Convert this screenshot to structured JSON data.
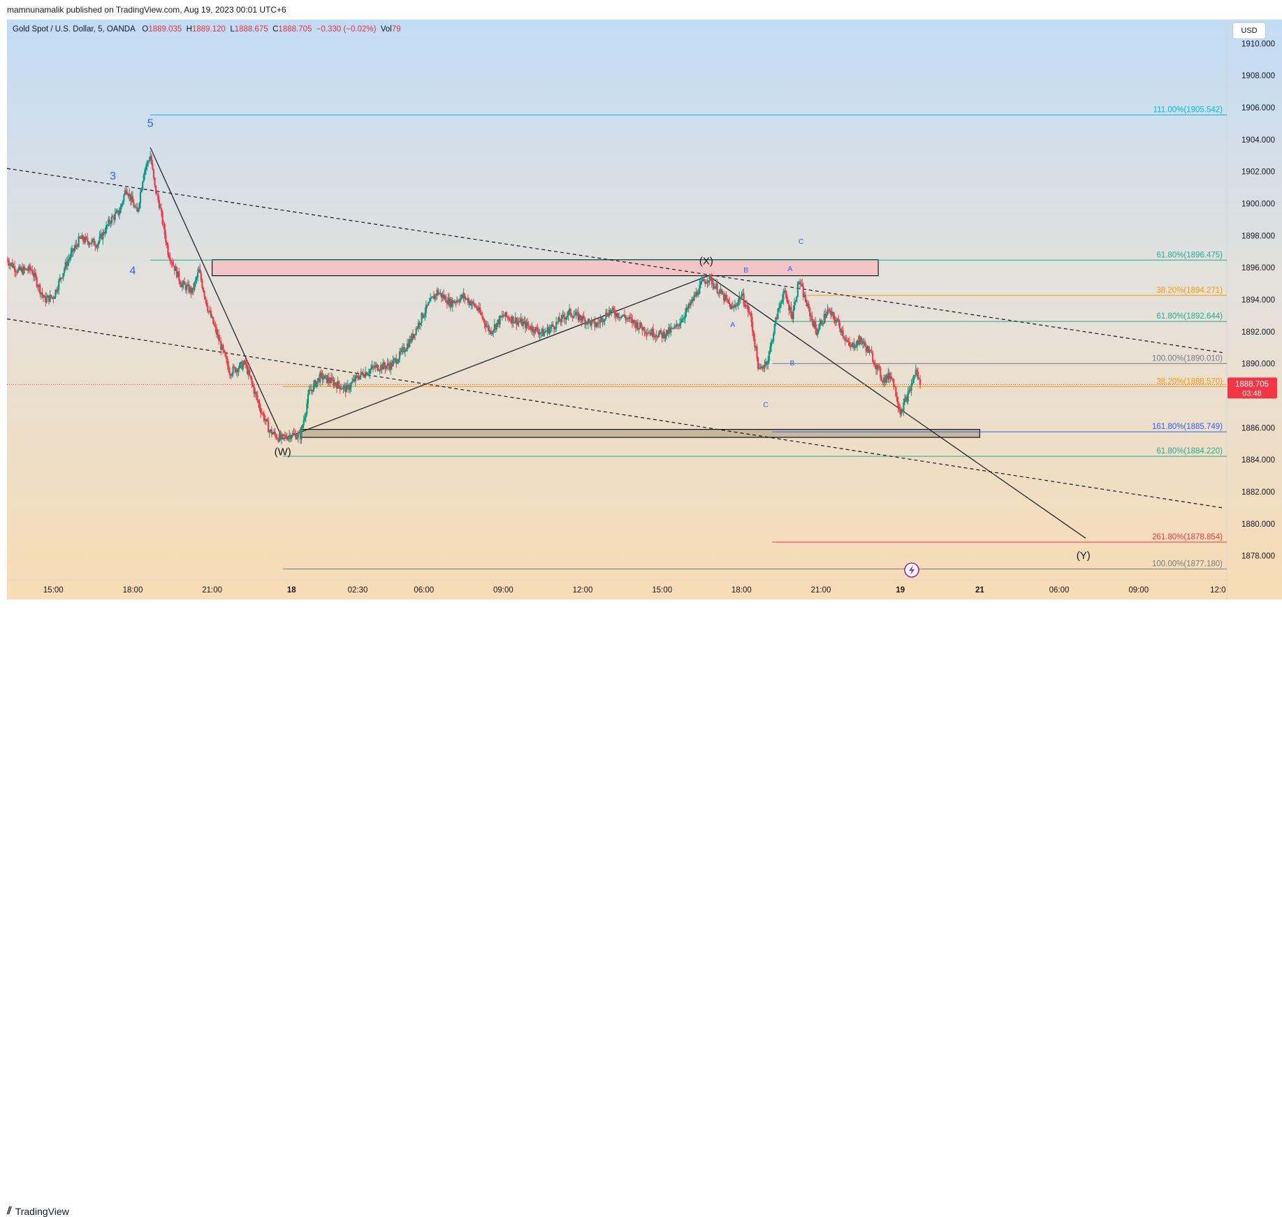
{
  "header": {
    "published_by": "mamnunamalik published on TradingView.com, Aug 19, 2023 00:01 UTC+6"
  },
  "legend": {
    "symbol": "Gold Spot / U.S. Dollar, 5, OANDA",
    "open_label": "O",
    "open": "1889.035",
    "high_label": "H",
    "high": "1889.120",
    "low_label": "L",
    "low": "1888.675",
    "close_label": "C",
    "close": "1888.705",
    "change": "−0.330 (−0.02%)",
    "vol_label": "Vol",
    "vol": "79"
  },
  "currency_button": "USD",
  "price_tag": {
    "price": "1888.705",
    "countdown": "03:48",
    "color": "#f23645"
  },
  "footer": {
    "brand": "TradingView"
  },
  "colors": {
    "up": "#089981",
    "down": "#f23645",
    "teal_line": "#22ab94",
    "orange_line": "#ff9800",
    "cyan_line": "#00bcd4",
    "grey_line": "#787b86",
    "blue_line": "#2962ff",
    "red_line": "#f23645",
    "wave_blue": "#2962ff"
  },
  "chart_data": {
    "type": "candlestick",
    "symbol": "XAUUSD",
    "timeframe": "5",
    "y_axis": {
      "min": 1876.5,
      "max": 1911.5,
      "ticks": [
        1878,
        1880,
        1882,
        1884,
        1886,
        1888,
        1890,
        1892,
        1894,
        1896,
        1898,
        1900,
        1902,
        1904,
        1906,
        1908,
        1910
      ],
      "tick_labels": [
        "1878.000",
        "1880.000",
        "1882.000",
        "1884.000",
        "1886.000",
        "1888.000",
        "1890.000",
        "1892.000",
        "1894.000",
        "1896.000",
        "1898.000",
        "1900.000",
        "1902.000",
        "1904.000",
        "1906.000",
        "1908.000",
        "1910.000"
      ]
    },
    "x_axis": {
      "labels": [
        {
          "t": 0,
          "text": "15:00",
          "bold": false
        },
        {
          "t": 36,
          "text": "18:00",
          "bold": false
        },
        {
          "t": 72,
          "text": "21:00",
          "bold": false
        },
        {
          "t": 108,
          "text": "18",
          "bold": true
        },
        {
          "t": 138,
          "text": "02:30",
          "bold": false
        },
        {
          "t": 168,
          "text": "06:00",
          "bold": false
        },
        {
          "t": 204,
          "text": "09:00",
          "bold": false
        },
        {
          "t": 240,
          "text": "12:00",
          "bold": false
        },
        {
          "t": 276,
          "text": "15:00",
          "bold": false
        },
        {
          "t": 312,
          "text": "18:00",
          "bold": false
        },
        {
          "t": 348,
          "text": "21:00",
          "bold": false
        },
        {
          "t": 384,
          "text": "19",
          "bold": true
        },
        {
          "t": 420,
          "text": "21",
          "bold": true
        },
        {
          "t": 456,
          "text": "06:00",
          "bold": false
        },
        {
          "t": 492,
          "text": "09:00",
          "bold": false
        },
        {
          "t": 528,
          "text": "12:0",
          "bold": false
        }
      ]
    },
    "price_path": [
      {
        "t": -21,
        "p": 1896.5
      },
      {
        "t": -16,
        "p": 1895.8
      },
      {
        "t": -10,
        "p": 1895.9
      },
      {
        "t": -4,
        "p": 1894.0
      },
      {
        "t": 0,
        "p": 1894.2
      },
      {
        "t": 6,
        "p": 1896.3
      },
      {
        "t": 12,
        "p": 1897.8
      },
      {
        "t": 20,
        "p": 1897.5
      },
      {
        "t": 26,
        "p": 1899.0
      },
      {
        "t": 30,
        "p": 1899.5
      },
      {
        "t": 33,
        "p": 1901.0
      },
      {
        "t": 38,
        "p": 1899.4
      },
      {
        "t": 41,
        "p": 1902.0
      },
      {
        "t": 44,
        "p": 1903.0
      },
      {
        "t": 46,
        "p": 1901.0
      },
      {
        "t": 48,
        "p": 1900.0
      },
      {
        "t": 52,
        "p": 1897.0
      },
      {
        "t": 58,
        "p": 1895.0
      },
      {
        "t": 63,
        "p": 1894.5
      },
      {
        "t": 66,
        "p": 1895.8
      },
      {
        "t": 70,
        "p": 1893.5
      },
      {
        "t": 75,
        "p": 1891.5
      },
      {
        "t": 80,
        "p": 1889.5
      },
      {
        "t": 87,
        "p": 1890.0
      },
      {
        "t": 93,
        "p": 1887.5
      },
      {
        "t": 98,
        "p": 1885.8
      },
      {
        "t": 103,
        "p": 1885.3
      },
      {
        "t": 108,
        "p": 1885.6
      },
      {
        "t": 112,
        "p": 1885.5
      },
      {
        "t": 116,
        "p": 1888.2
      },
      {
        "t": 121,
        "p": 1889.2
      },
      {
        "t": 126,
        "p": 1888.9
      },
      {
        "t": 133,
        "p": 1888.4
      },
      {
        "t": 138,
        "p": 1889.2
      },
      {
        "t": 146,
        "p": 1889.8
      },
      {
        "t": 153,
        "p": 1889.9
      },
      {
        "t": 157,
        "p": 1890.5
      },
      {
        "t": 162,
        "p": 1891.5
      },
      {
        "t": 168,
        "p": 1893.2
      },
      {
        "t": 174,
        "p": 1894.5
      },
      {
        "t": 180,
        "p": 1893.8
      },
      {
        "t": 186,
        "p": 1894.2
      },
      {
        "t": 192,
        "p": 1893.5
      },
      {
        "t": 198,
        "p": 1892.0
      },
      {
        "t": 204,
        "p": 1893.0
      },
      {
        "t": 210,
        "p": 1892.7
      },
      {
        "t": 216,
        "p": 1892.3
      },
      {
        "t": 222,
        "p": 1891.9
      },
      {
        "t": 228,
        "p": 1892.5
      },
      {
        "t": 234,
        "p": 1893.2
      },
      {
        "t": 240,
        "p": 1892.8
      },
      {
        "t": 246,
        "p": 1892.4
      },
      {
        "t": 252,
        "p": 1893.3
      },
      {
        "t": 258,
        "p": 1893.0
      },
      {
        "t": 264,
        "p": 1892.5
      },
      {
        "t": 270,
        "p": 1892.0
      },
      {
        "t": 276,
        "p": 1891.8
      },
      {
        "t": 282,
        "p": 1892.2
      },
      {
        "t": 288,
        "p": 1893.5
      },
      {
        "t": 294,
        "p": 1895.0
      },
      {
        "t": 297,
        "p": 1895.4
      },
      {
        "t": 302,
        "p": 1894.5
      },
      {
        "t": 308,
        "p": 1893.4
      },
      {
        "t": 312,
        "p": 1894.3
      },
      {
        "t": 316,
        "p": 1893.0
      },
      {
        "t": 320,
        "p": 1889.5
      },
      {
        "t": 324,
        "p": 1890.3
      },
      {
        "t": 328,
        "p": 1893.0
      },
      {
        "t": 331,
        "p": 1894.5
      },
      {
        "t": 335,
        "p": 1893.0
      },
      {
        "t": 338,
        "p": 1895.2
      },
      {
        "t": 342,
        "p": 1893.5
      },
      {
        "t": 346,
        "p": 1892.0
      },
      {
        "t": 351,
        "p": 1893.3
      },
      {
        "t": 356,
        "p": 1892.5
      },
      {
        "t": 361,
        "p": 1891.0
      },
      {
        "t": 366,
        "p": 1891.5
      },
      {
        "t": 371,
        "p": 1890.5
      },
      {
        "t": 376,
        "p": 1889.0
      },
      {
        "t": 380,
        "p": 1889.3
      },
      {
        "t": 384,
        "p": 1887.0
      },
      {
        "t": 388,
        "p": 1888.2
      },
      {
        "t": 391,
        "p": 1889.6
      },
      {
        "t": 393,
        "p": 1888.7
      }
    ],
    "levels": [
      {
        "price": 1905.542,
        "label": "111.00%(1905.542)",
        "color": "cyan",
        "t0": 44
      },
      {
        "price": 1896.475,
        "label": "61.80%(1896.475)",
        "color": "teal",
        "t0": 44
      },
      {
        "price": 1894.271,
        "label": "38.20%(1894.271)",
        "color": "orange",
        "t0": 342
      },
      {
        "price": 1892.644,
        "label": "61.80%(1892.644)",
        "color": "teal",
        "t0": 326
      },
      {
        "price": 1890.01,
        "label": "100.00%(1890.010)",
        "color": "grey",
        "t0": 326
      },
      {
        "price": 1888.57,
        "label": "38.20%(1888.570)",
        "color": "orange",
        "t0": 104
      },
      {
        "price": 1885.749,
        "label": "161.80%(1885.749)",
        "color": "blue",
        "t0": 326
      },
      {
        "price": 1884.22,
        "label": "61.80%(1884.220)",
        "color": "teal",
        "t0": 104
      },
      {
        "price": 1878.854,
        "label": "261.80%(1878.854)",
        "color": "red",
        "t0": 326
      },
      {
        "price": 1877.18,
        "label": "100.00%(1877.180)",
        "color": "grey",
        "t0": 104
      }
    ],
    "zones": [
      {
        "t0": 72,
        "t1": 374,
        "p_top": 1896.5,
        "p_bot": 1895.5,
        "fill": "#f2c6c6"
      },
      {
        "t0": 112,
        "t1": 420,
        "p_top": 1885.9,
        "p_bot": 1885.4,
        "fill": "#c9b79b"
      }
    ],
    "trend_lines": [
      {
        "t0": 44,
        "p0": 1903.5,
        "t1": 104,
        "p1": 1885.3,
        "dashed": false
      },
      {
        "t0": 104,
        "p0": 1885.3,
        "t1": 297,
        "p1": 1895.5,
        "dashed": false
      },
      {
        "t0": 297,
        "p0": 1895.5,
        "t1": 468,
        "p1": 1879.1,
        "dashed": false
      },
      {
        "t0": -21,
        "p0": 1902.2,
        "t1": 530,
        "p1": 1890.7,
        "dashed": true
      },
      {
        "t0": -21,
        "p0": 1892.8,
        "t1": 530,
        "p1": 1881.0,
        "dashed": true
      }
    ],
    "wave_labels": [
      {
        "text": "3",
        "t": 27,
        "p": 1901.5,
        "kind": "impulse"
      },
      {
        "text": "4",
        "t": 36,
        "p": 1895.6,
        "kind": "impulse"
      },
      {
        "text": "5",
        "t": 44,
        "p": 1904.8,
        "kind": "impulse"
      },
      {
        "text": "(W)",
        "t": 104,
        "p": 1884.3,
        "kind": "major"
      },
      {
        "text": "(X)",
        "t": 296,
        "p": 1896.2,
        "kind": "major"
      },
      {
        "text": "(Y)",
        "t": 467,
        "p": 1877.8,
        "kind": "major"
      },
      {
        "text": "A",
        "t": 308,
        "p": 1892.3,
        "kind": "minor"
      },
      {
        "text": "B",
        "t": 314,
        "p": 1895.7,
        "kind": "minor"
      },
      {
        "text": "C",
        "t": 323,
        "p": 1887.3,
        "kind": "minor"
      },
      {
        "text": "A",
        "t": 334,
        "p": 1895.8,
        "kind": "minor"
      },
      {
        "text": "B",
        "t": 335,
        "p": 1889.9,
        "kind": "minor"
      },
      {
        "text": "C",
        "t": 339,
        "p": 1897.5,
        "kind": "minor"
      }
    ],
    "last_price": 1888.705,
    "last_t": 393
  }
}
